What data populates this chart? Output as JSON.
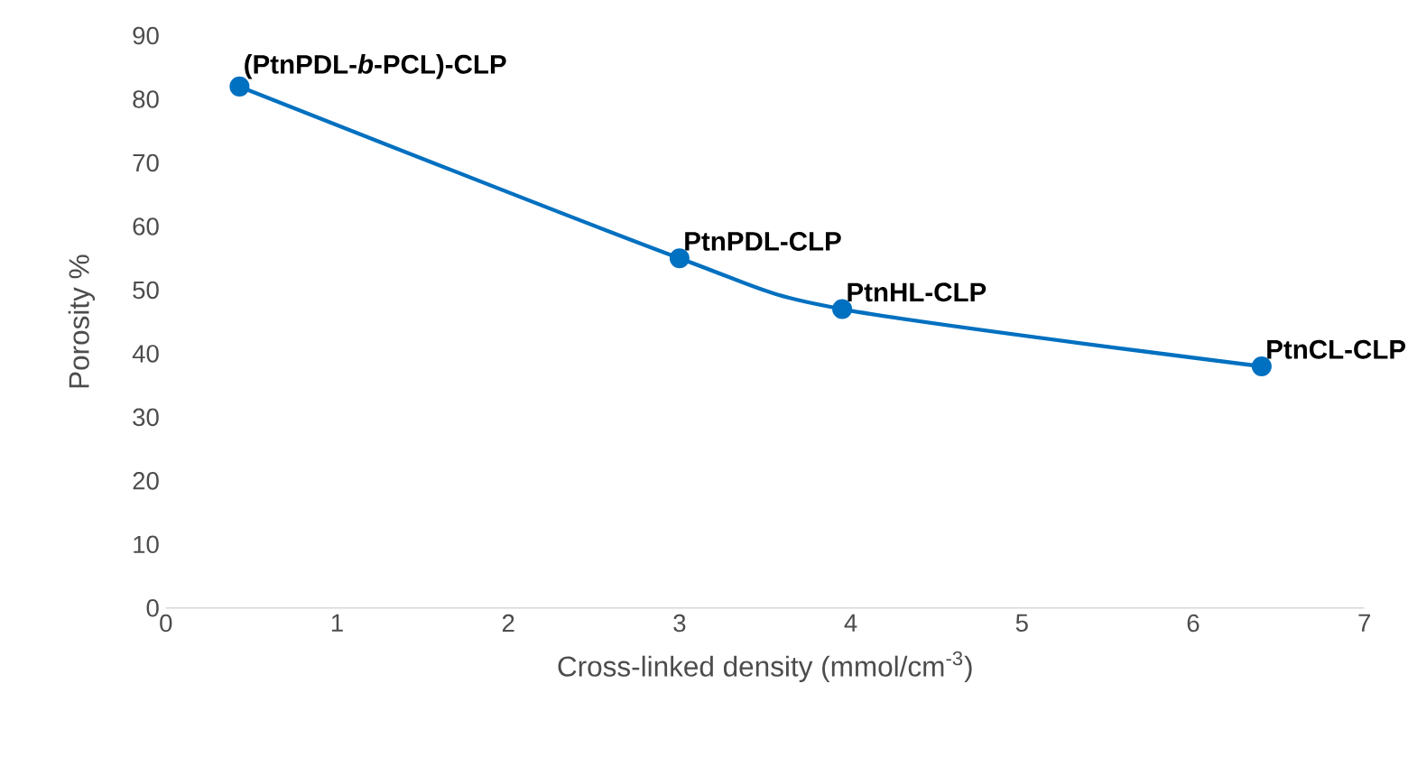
{
  "chart_data": {
    "type": "line",
    "xlabel": "Cross-linked density (mmol/cm$^{-3}$)",
    "ylabel": "Porosity %",
    "x": [
      0.43,
      3.0,
      3.95,
      6.4
    ],
    "series": [
      {
        "color": "#0070c0",
        "values": [
          82,
          55,
          47,
          38
        ]
      }
    ],
    "xlim": [
      0,
      7
    ],
    "ylim": [
      0,
      90
    ],
    "xticks": [
      0,
      1,
      2,
      3,
      4,
      5,
      6,
      7
    ],
    "yticks": [
      0,
      10,
      20,
      30,
      40,
      50,
      60,
      70,
      80,
      90
    ],
    "marker": "circle",
    "annotations": [
      {
        "text": "(PtnPDL-*b*-PCL)-CLP",
        "x": 0.43,
        "y": 82
      },
      {
        "text": "PtnPDL-CLP",
        "x": 3.0,
        "y": 55
      },
      {
        "text": "PtnHL-CLP",
        "x": 3.95,
        "y": 47
      },
      {
        "text": "PtnCL-CLP",
        "x": 6.4,
        "y": 38
      }
    ]
  }
}
